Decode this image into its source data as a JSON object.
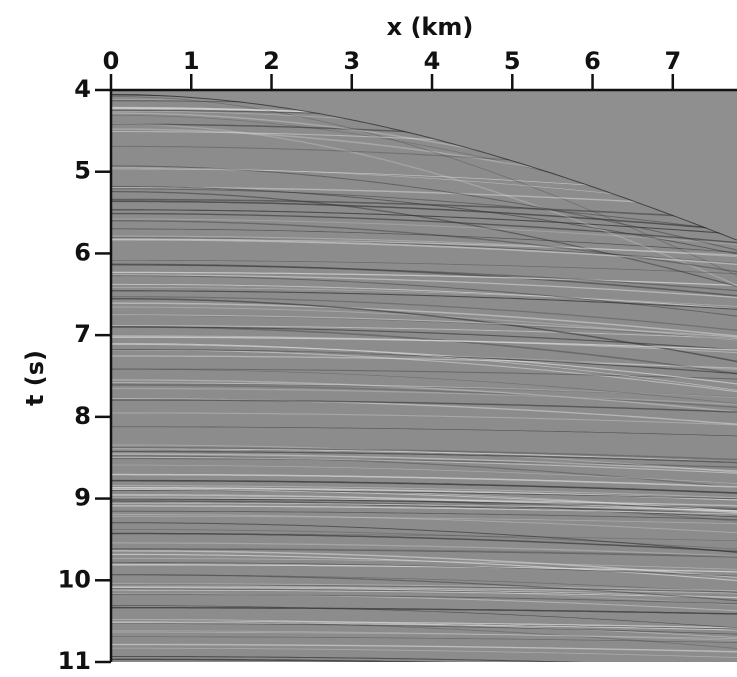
{
  "chart_data": {
    "type": "seismic-image",
    "xlabel": "x (km)",
    "ylabel": "t (s)",
    "xlim": [
      0,
      7.8
    ],
    "xticks": [
      0,
      1,
      2,
      3,
      4,
      5,
      6,
      7
    ],
    "ylim": [
      11,
      4
    ],
    "yticks": [
      4,
      5,
      6,
      7,
      8,
      9,
      10,
      11
    ],
    "x_axis_position": "top",
    "y_axis_inverted": true,
    "color": "#8c8c8c"
  }
}
